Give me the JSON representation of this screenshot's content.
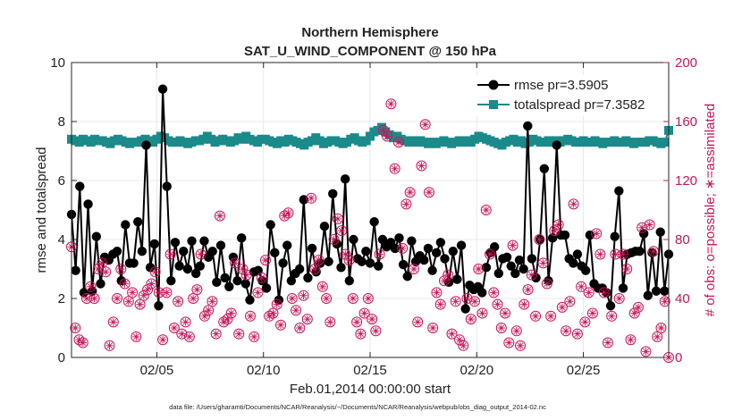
{
  "chart_data": {
    "type": "line",
    "title": [
      "Northern Hemisphere",
      "SAT_U_WIND_COMPONENT @ 150 hPa"
    ],
    "xlabel": "Feb.01,2014 00:00:00 start",
    "ylabel": "rmse and totalspread",
    "ylabel_right": "# of obs: o=possible; ∗=assimilated",
    "x_unit": "days since Feb.01,2014 00:00",
    "xlim": [
      1,
      29
    ],
    "ylim": [
      0,
      10
    ],
    "ylim_right": [
      0,
      200
    ],
    "x_ticks": [
      5,
      10,
      15,
      20,
      25
    ],
    "x_tick_labels": [
      "02/05",
      "02/10",
      "02/15",
      "02/20",
      "02/25"
    ],
    "y_ticks": [
      0,
      2,
      4,
      6,
      8,
      10
    ],
    "y_ticks_right": [
      0,
      40,
      80,
      120,
      160,
      200
    ],
    "legend_position": "top-right",
    "colors": {
      "rmse": "#000000",
      "spread": "#1a8a8a",
      "obs": "#c8155a",
      "axes": "#262626"
    },
    "footer": "data file: /Users/gharamti/Documents/NCAR/Reanalysis/~/Documents/NCAR/Reanalysis/webpub/obs_diag_output_2014-02.nc",
    "series": [
      {
        "name": "rmse pr=3.5905",
        "axis": "left",
        "marker": "circle",
        "values": [
          4.85,
          2.95,
          5.8,
          2.2,
          5.2,
          2.25,
          4.1,
          2.5,
          3.4,
          3.3,
          3.5,
          3.6,
          2.6,
          4.5,
          3.2,
          3.2,
          4.6,
          3.6,
          7.2,
          3.05,
          3.85,
          1.75,
          9.1,
          5.8,
          2.6,
          3.9,
          3.1,
          3.6,
          3.0,
          3.95,
          2.85,
          3.1,
          3.95,
          3.4,
          3.6,
          2.55,
          3.8,
          2.7,
          2.4,
          3.4,
          2.6,
          4.05,
          2.5,
          1.95,
          2.9,
          2.95,
          2.6,
          2.35,
          4.5,
          3.55,
          1.95,
          3.2,
          3.8,
          2.6,
          2.85,
          3.0,
          5.35,
          2.7,
          3.7,
          2.9,
          3.2,
          4.45,
          3.25,
          5.55,
          3.85,
          3.05,
          6.05,
          2.6,
          4.0,
          3.35,
          3.25,
          3.6,
          3.2,
          4.6,
          3.1,
          4.0,
          3.75,
          3.9,
          3.7,
          4.05,
          3.15,
          2.75,
          3.95,
          3.25,
          3.45,
          3.3,
          3.7,
          2.95,
          3.55,
          3.9,
          3.35,
          2.55,
          3.6,
          2.65,
          3.8,
          1.65,
          2.45,
          2.3,
          2.4,
          2.2,
          3.05,
          3.55,
          3.75,
          2.85,
          3.35,
          3.4,
          3.1,
          2.85,
          3.3,
          3.0,
          7.85,
          3.35,
          2.7,
          4.0,
          6.4,
          2.6,
          4.05,
          7.2,
          4.15,
          4.15,
          3.35,
          3.2,
          3.5,
          3.1,
          2.95,
          4.15,
          2.5,
          2.35,
          2.35,
          2.2,
          1.75,
          4.1,
          5.65,
          2.35,
          3.5,
          3.55,
          3.6,
          3.6,
          4.2,
          2.1,
          3.55,
          2.25,
          4.25,
          2.25,
          3.5
        ]
      },
      {
        "name": "totalspread pr=7.3582",
        "axis": "left",
        "marker": "square",
        "values": [
          7.4,
          7.35,
          7.3,
          7.4,
          7.35,
          7.3,
          7.4,
          7.35,
          7.35,
          7.3,
          7.25,
          7.35,
          7.4,
          7.35,
          7.3,
          7.25,
          7.3,
          7.3,
          7.35,
          7.4,
          7.35,
          7.3,
          7.4,
          7.5,
          7.45,
          7.35,
          7.3,
          7.3,
          7.35,
          7.3,
          7.25,
          7.3,
          7.35,
          7.35,
          7.4,
          7.5,
          7.4,
          7.3,
          7.35,
          7.4,
          7.35,
          7.3,
          7.35,
          7.45,
          7.4,
          7.5,
          7.4,
          7.35,
          7.3,
          7.4,
          7.4,
          7.35,
          7.3,
          7.25,
          7.35,
          7.3,
          7.4,
          7.35,
          7.3,
          7.25,
          7.2,
          7.3,
          7.35,
          7.45,
          7.35,
          7.25,
          7.3,
          7.35,
          7.35,
          7.3,
          7.25,
          7.3,
          7.4,
          7.45,
          7.35,
          7.3,
          7.35,
          7.5,
          7.65,
          7.7,
          7.8,
          7.65,
          7.55,
          7.45,
          7.5,
          7.4,
          7.35,
          7.3,
          7.35,
          7.3,
          7.35,
          7.3,
          7.25,
          7.3,
          7.25,
          7.3,
          7.35,
          7.3,
          7.25,
          7.3,
          7.35,
          7.3,
          7.35,
          7.3,
          7.4,
          7.5,
          7.45,
          7.4,
          7.35,
          7.3,
          7.25,
          7.2,
          7.3,
          7.35,
          7.4,
          7.3,
          7.35,
          7.25,
          7.3,
          7.4,
          7.35,
          7.3,
          7.3,
          7.35,
          7.3,
          7.35,
          7.3,
          7.35,
          7.4,
          7.35,
          7.3,
          7.3,
          7.35,
          7.3,
          7.3,
          7.35,
          7.3,
          7.25,
          7.3,
          7.3,
          7.35,
          7.3,
          7.3,
          7.35,
          7.3,
          7.25,
          7.3,
          7.3,
          7.3,
          7.35,
          7.35,
          7.3,
          7.25,
          7.3,
          7.7
        ]
      },
      {
        "name": "# of obs (possible = assimilated)",
        "axis": "right",
        "marker": "circled-asterisk",
        "values": [
          75,
          20,
          12,
          10,
          40,
          48,
          40,
          60,
          64,
          58,
          8,
          24,
          40,
          60,
          50,
          38,
          44,
          14,
          36,
          42,
          46,
          50,
          58,
          44,
          12,
          44,
          70,
          20,
          38,
          16,
          24,
          14,
          40,
          46,
          70,
          28,
          32,
          38,
          16,
          96,
          24,
          26,
          30,
          64,
          16,
          60,
          56,
          28,
          14,
          44,
          54,
          66,
          28,
          30,
          36,
          22,
          96,
          98,
          40,
          32,
          20,
          42,
          26,
          108,
          60,
          66,
          48,
          40,
          24,
          80,
          94,
          86,
          70,
          66,
          40,
          24,
          16,
          30,
          40,
          26,
          18,
          70,
          154,
          150,
          172,
          128,
          146,
          74,
          104,
          112,
          60,
          24,
          130,
          158,
          112,
          20,
          44,
          36,
          52,
          56,
          16,
          38,
          12,
          8,
          40,
          26,
          38,
          60,
          30,
          100,
          70,
          44,
          36,
          20,
          30,
          10,
          76,
          18,
          8,
          36,
          46,
          56,
          28,
          80,
          64,
          50,
          28,
          86,
          90,
          34,
          18,
          38,
          104,
          16,
          48,
          24,
          44,
          30,
          84,
          70,
          44,
          10,
          28,
          70,
          40,
          70,
          60,
          12,
          30,
          34,
          88,
          4,
          90,
          72,
          14,
          20,
          38,
          0
        ]
      }
    ]
  }
}
